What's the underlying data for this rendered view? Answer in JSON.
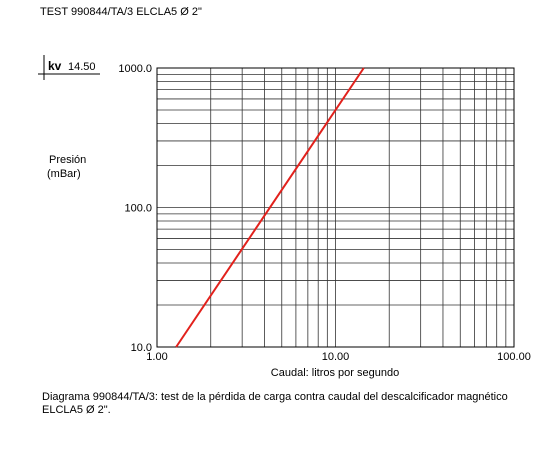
{
  "chart_data": {
    "type": "line",
    "title": "TEST 990844/TA/3 ELCLA5 Ø 2\"",
    "kv_label": "kv",
    "kv_value": "14.50",
    "ylabel": "Presión\n(mBar)",
    "xlabel": "Caudal: litros por segundo",
    "caption": "Diagrama 990844/TA/3: test de la  pérdida de carga contra caudal del descalcificador magnético ELCLA5 Ø 2\".",
    "log_x": true,
    "log_y": true,
    "grid": true,
    "xlim": [
      1,
      100
    ],
    "ylim": [
      10,
      1000
    ],
    "xticks": [
      {
        "value": 1,
        "label": "1.00"
      },
      {
        "value": 10,
        "label": "10.00"
      },
      {
        "value": 100,
        "label": "100.00"
      }
    ],
    "yticks": [
      {
        "value": 10,
        "label": "10.0"
      },
      {
        "value": 100,
        "label": "100.0"
      },
      {
        "value": 1000,
        "label": "1000.0"
      }
    ],
    "x_minor_ticks": [
      2,
      3,
      4,
      5,
      6,
      7,
      8,
      9,
      20,
      30,
      40,
      50,
      60,
      70,
      80,
      90
    ],
    "y_minor_ticks": [
      20,
      30,
      40,
      50,
      60,
      70,
      80,
      90,
      200,
      300,
      400,
      500,
      600,
      700,
      800,
      900
    ],
    "x": [
      1.28,
      14.4
    ],
    "series": [
      {
        "color": "#e2211c",
        "values": [
          10,
          1000
        ]
      }
    ]
  }
}
